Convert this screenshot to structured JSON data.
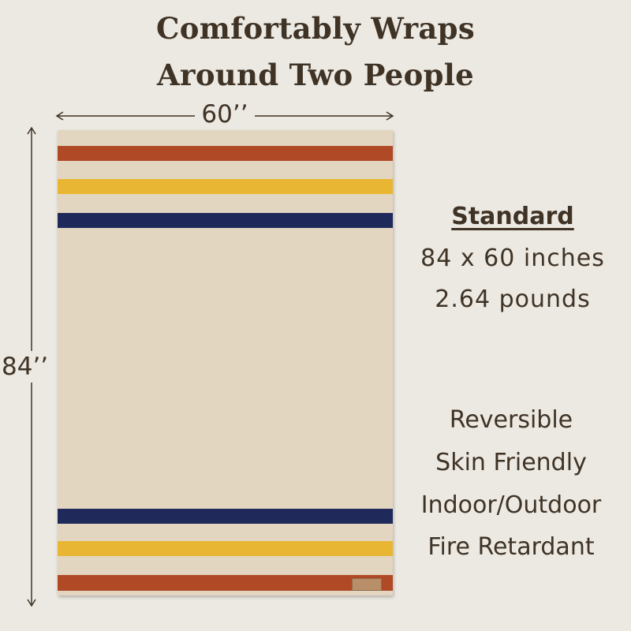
{
  "title": {
    "line1": "Comfortably Wraps",
    "line2": "Around Two People"
  },
  "dimensions": {
    "width_label": "60’’",
    "height_label": "84’’"
  },
  "spec": {
    "heading": "Standard",
    "size": "84 x 60 inches",
    "weight": "2.64 pounds"
  },
  "features": [
    "Reversible",
    "Skin Friendly",
    "Indoor/Outdoor",
    "Fire Retardant"
  ],
  "colors": {
    "background": "#ece9e2",
    "text": "#3f3326",
    "blanket": "#e3d6c1",
    "stripe_red": "#b04a26",
    "stripe_yellow": "#e9b634",
    "stripe_blue": "#1f2a5a"
  }
}
